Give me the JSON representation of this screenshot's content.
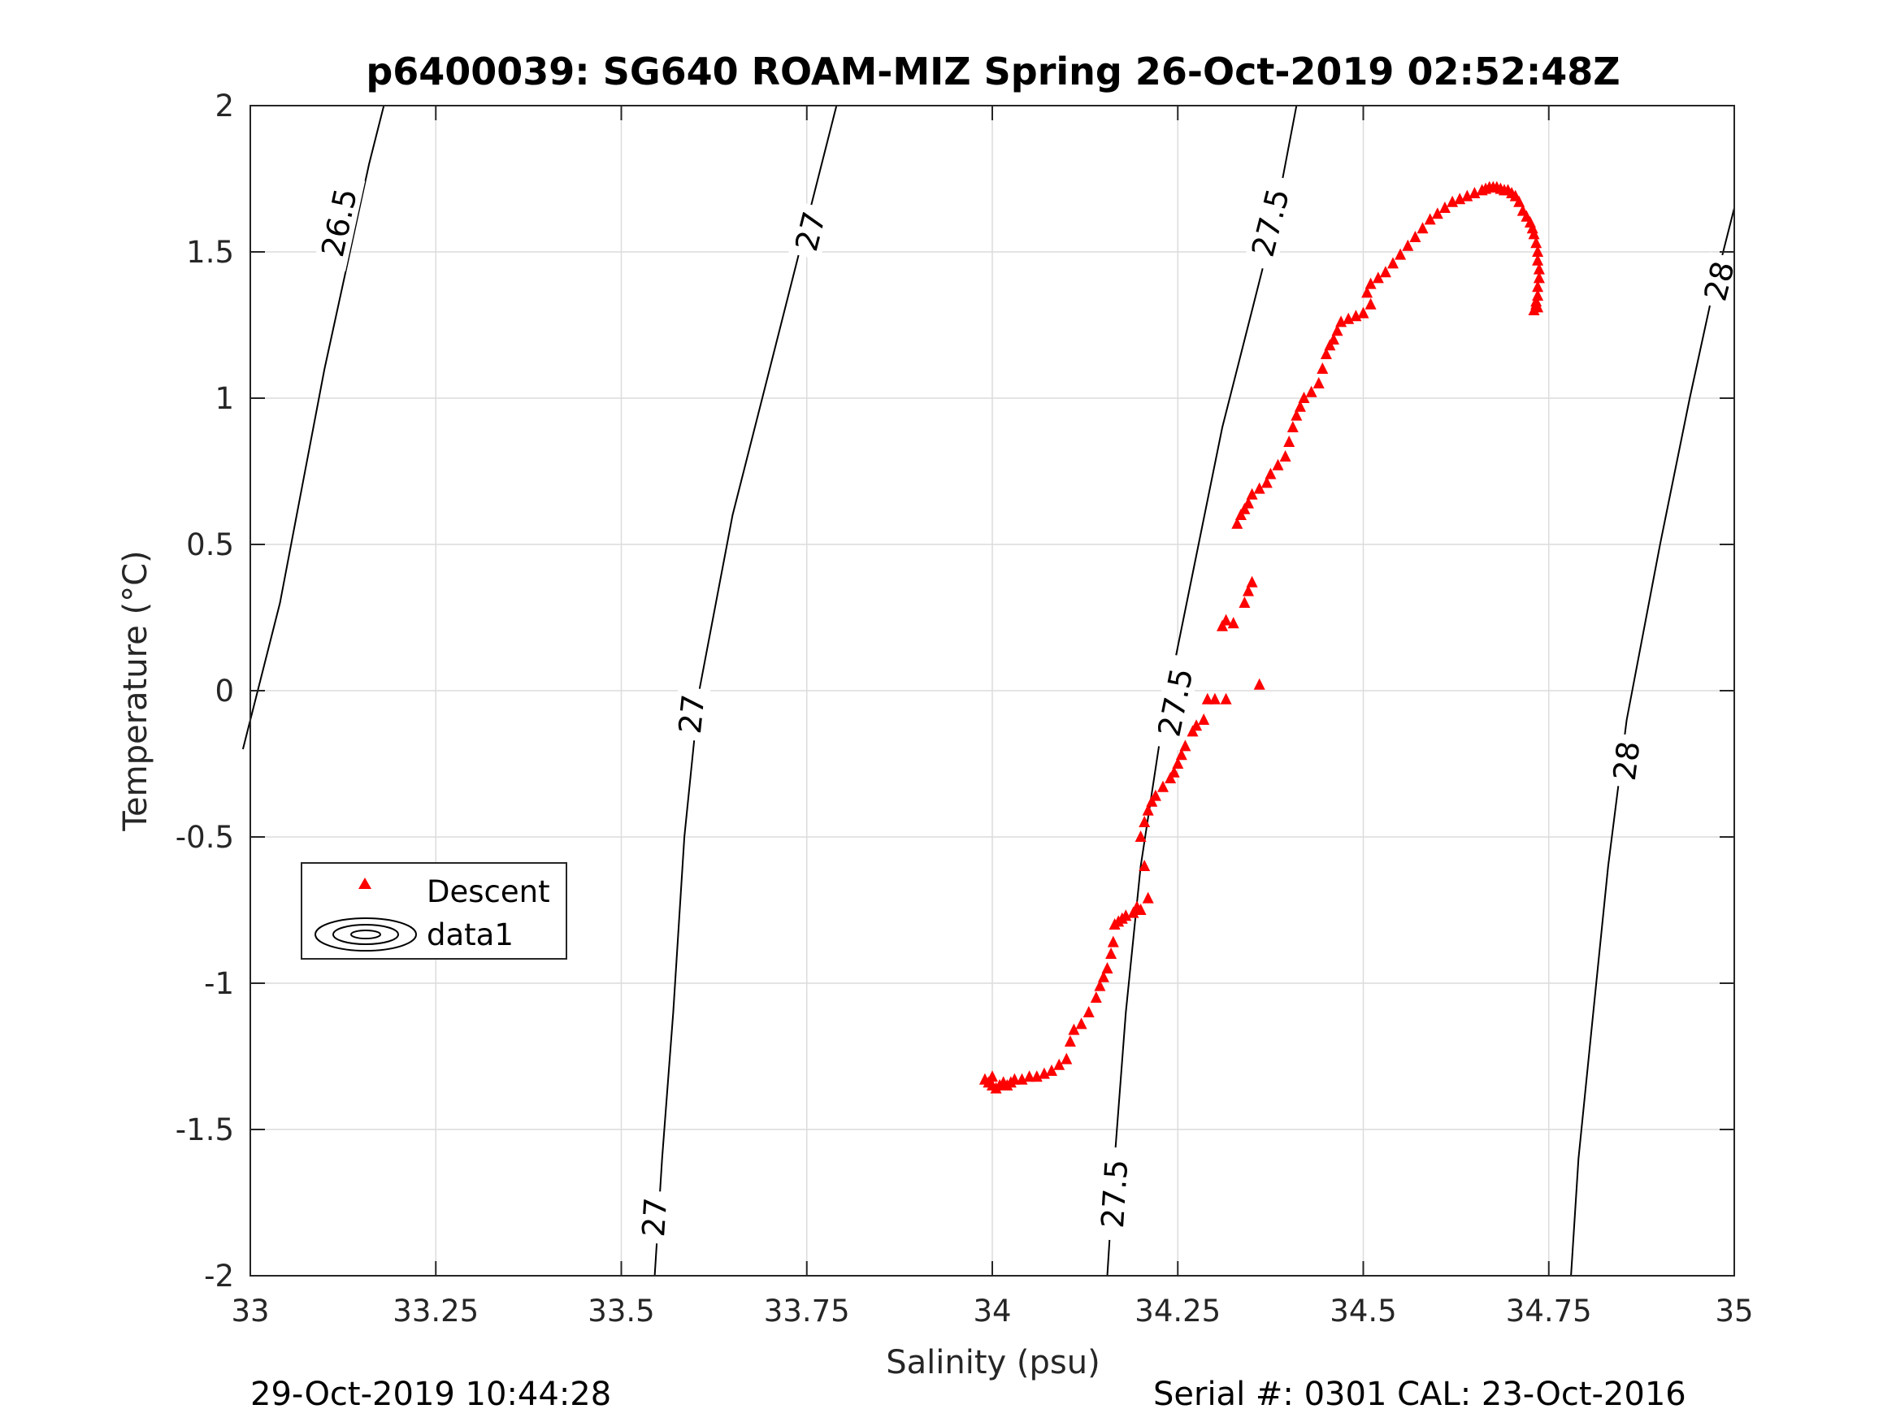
{
  "chart_data": {
    "type": "scatter",
    "title": "p6400039: SG640 ROAM-MIZ Spring 26-Oct-2019 02:52:48Z",
    "xlabel": "Salinity (psu)",
    "ylabel": "Temperature (°C)",
    "xlim": [
      33,
      35
    ],
    "ylim": [
      -2,
      2
    ],
    "x_ticks": [
      33,
      33.25,
      33.5,
      33.75,
      34,
      34.25,
      34.5,
      34.75,
      35
    ],
    "x_tick_labels": [
      "33",
      "33.25",
      "33.5",
      "33.75",
      "34",
      "34.25",
      "34.5",
      "34.75",
      "35"
    ],
    "y_ticks": [
      -2,
      -1.5,
      -1,
      -0.5,
      0,
      0.5,
      1,
      1.5,
      2
    ],
    "y_tick_labels": [
      "-2",
      "-1.5",
      "-1",
      "-0.5",
      "0",
      "0.5",
      "1",
      "1.5",
      "2"
    ],
    "grid": true,
    "legend": {
      "placement": "lower-left",
      "entries": [
        {
          "label": "Descent",
          "marker": "triangle",
          "color": "#ff0000"
        },
        {
          "label": "data1",
          "marker": "contour",
          "color": "#000000"
        }
      ]
    },
    "contours": [
      {
        "level": "26.5",
        "points": [
          [
            32.99,
            -0.2
          ],
          [
            33.04,
            0.3
          ],
          [
            33.07,
            0.7
          ],
          [
            33.1,
            1.1
          ],
          [
            33.13,
            1.45
          ],
          [
            33.16,
            1.8
          ],
          [
            33.18,
            2.0
          ]
        ],
        "labels": [
          {
            "text": "26.5",
            "s": 33.12,
            "t": 1.6
          }
        ]
      },
      {
        "level": "27",
        "points": [
          [
            33.545,
            -2.0
          ],
          [
            33.555,
            -1.6
          ],
          [
            33.57,
            -1.1
          ],
          [
            33.585,
            -0.5
          ],
          [
            33.605,
            0.0
          ],
          [
            33.65,
            0.6
          ],
          [
            33.7,
            1.1
          ],
          [
            33.74,
            1.5
          ],
          [
            33.79,
            2.0
          ]
        ],
        "labels": [
          {
            "text": "27",
            "s": 33.545,
            "t": -1.8
          },
          {
            "text": "27",
            "s": 33.595,
            "t": -0.08
          },
          {
            "text": "27",
            "s": 33.755,
            "t": 1.57
          }
        ]
      },
      {
        "level": "27.5",
        "points": [
          [
            34.155,
            -2.0
          ],
          [
            34.165,
            -1.6
          ],
          [
            34.18,
            -1.1
          ],
          [
            34.2,
            -0.6
          ],
          [
            34.23,
            -0.1
          ],
          [
            34.27,
            0.4
          ],
          [
            34.31,
            0.9
          ],
          [
            34.35,
            1.3
          ],
          [
            34.38,
            1.6
          ],
          [
            34.41,
            2.0
          ]
        ],
        "labels": [
          {
            "text": "27.5",
            "s": 34.165,
            "t": -1.72
          },
          {
            "text": "27.5",
            "s": 34.247,
            "t": -0.04
          },
          {
            "text": "27.5",
            "s": 34.375,
            "t": 1.6
          }
        ]
      },
      {
        "level": "28",
        "points": [
          [
            34.78,
            -2.0
          ],
          [
            34.79,
            -1.6
          ],
          [
            34.81,
            -1.1
          ],
          [
            34.83,
            -0.6
          ],
          [
            34.855,
            -0.1
          ],
          [
            34.9,
            0.5
          ],
          [
            34.94,
            1.0
          ],
          [
            34.97,
            1.35
          ],
          [
            35.0,
            1.65
          ]
        ],
        "labels": [
          {
            "text": "28",
            "s": 34.855,
            "t": -0.24
          },
          {
            "text": "28",
            "s": 34.98,
            "t": 1.4
          }
        ]
      }
    ],
    "series": [
      {
        "name": "Descent",
        "marker": "triangle",
        "color": "#ff0000",
        "points": [
          [
            33.99,
            -1.33
          ],
          [
            33.995,
            -1.34
          ],
          [
            34.0,
            -1.32
          ],
          [
            34.0,
            -1.35
          ],
          [
            34.005,
            -1.36
          ],
          [
            34.01,
            -1.35
          ],
          [
            34.015,
            -1.34
          ],
          [
            34.02,
            -1.35
          ],
          [
            34.025,
            -1.34
          ],
          [
            34.03,
            -1.33
          ],
          [
            34.04,
            -1.33
          ],
          [
            34.05,
            -1.32
          ],
          [
            34.06,
            -1.32
          ],
          [
            34.07,
            -1.31
          ],
          [
            34.08,
            -1.3
          ],
          [
            34.09,
            -1.28
          ],
          [
            34.1,
            -1.26
          ],
          [
            34.105,
            -1.2
          ],
          [
            34.11,
            -1.16
          ],
          [
            34.12,
            -1.14
          ],
          [
            34.13,
            -1.1
          ],
          [
            34.14,
            -1.05
          ],
          [
            34.145,
            -1.01
          ],
          [
            34.15,
            -0.98
          ],
          [
            34.155,
            -0.95
          ],
          [
            34.16,
            -0.9
          ],
          [
            34.163,
            -0.86
          ],
          [
            34.165,
            -0.8
          ],
          [
            34.17,
            -0.79
          ],
          [
            34.175,
            -0.78
          ],
          [
            34.18,
            -0.77
          ],
          [
            34.19,
            -0.76
          ],
          [
            34.195,
            -0.74
          ],
          [
            34.2,
            -0.75
          ],
          [
            34.21,
            -0.71
          ],
          [
            34.205,
            -0.6
          ],
          [
            34.2,
            -0.5
          ],
          [
            34.205,
            -0.45
          ],
          [
            34.21,
            -0.41
          ],
          [
            34.215,
            -0.38
          ],
          [
            34.22,
            -0.36
          ],
          [
            34.23,
            -0.33
          ],
          [
            34.24,
            -0.3
          ],
          [
            34.245,
            -0.28
          ],
          [
            34.25,
            -0.25
          ],
          [
            34.255,
            -0.22
          ],
          [
            34.26,
            -0.19
          ],
          [
            34.27,
            -0.14
          ],
          [
            34.275,
            -0.12
          ],
          [
            34.285,
            -0.1
          ],
          [
            34.29,
            -0.03
          ],
          [
            34.3,
            -0.03
          ],
          [
            34.315,
            -0.03
          ],
          [
            34.36,
            0.02
          ],
          [
            34.31,
            0.22
          ],
          [
            34.315,
            0.24
          ],
          [
            34.325,
            0.23
          ],
          [
            34.34,
            0.3
          ],
          [
            34.345,
            0.34
          ],
          [
            34.35,
            0.37
          ],
          [
            34.33,
            0.57
          ],
          [
            34.335,
            0.6
          ],
          [
            34.34,
            0.62
          ],
          [
            34.345,
            0.64
          ],
          [
            34.35,
            0.67
          ],
          [
            34.36,
            0.69
          ],
          [
            34.37,
            0.71
          ],
          [
            34.375,
            0.74
          ],
          [
            34.385,
            0.77
          ],
          [
            34.395,
            0.8
          ],
          [
            34.4,
            0.85
          ],
          [
            34.405,
            0.9
          ],
          [
            34.41,
            0.94
          ],
          [
            34.415,
            0.97
          ],
          [
            34.42,
            1.0
          ],
          [
            34.43,
            1.02
          ],
          [
            34.44,
            1.05
          ],
          [
            34.445,
            1.1
          ],
          [
            34.45,
            1.15
          ],
          [
            34.455,
            1.18
          ],
          [
            34.46,
            1.2
          ],
          [
            34.465,
            1.23
          ],
          [
            34.47,
            1.26
          ],
          [
            34.48,
            1.27
          ],
          [
            34.49,
            1.28
          ],
          [
            34.5,
            1.29
          ],
          [
            34.51,
            1.32
          ],
          [
            34.505,
            1.36
          ],
          [
            34.51,
            1.39
          ],
          [
            34.52,
            1.41
          ],
          [
            34.53,
            1.43
          ],
          [
            34.54,
            1.46
          ],
          [
            34.55,
            1.49
          ],
          [
            34.56,
            1.52
          ],
          [
            34.57,
            1.55
          ],
          [
            34.58,
            1.58
          ],
          [
            34.59,
            1.61
          ],
          [
            34.6,
            1.63
          ],
          [
            34.61,
            1.65
          ],
          [
            34.62,
            1.67
          ],
          [
            34.63,
            1.68
          ],
          [
            34.64,
            1.69
          ],
          [
            34.65,
            1.7
          ],
          [
            34.66,
            1.71
          ],
          [
            34.665,
            1.715
          ],
          [
            34.67,
            1.72
          ],
          [
            34.675,
            1.72
          ],
          [
            34.68,
            1.72
          ],
          [
            34.685,
            1.715
          ],
          [
            34.69,
            1.71
          ],
          [
            34.695,
            1.71
          ],
          [
            34.7,
            1.7
          ],
          [
            34.705,
            1.69
          ],
          [
            34.71,
            1.67
          ],
          [
            34.715,
            1.64
          ],
          [
            34.72,
            1.62
          ],
          [
            34.725,
            1.6
          ],
          [
            34.728,
            1.58
          ],
          [
            34.73,
            1.56
          ],
          [
            34.733,
            1.53
          ],
          [
            34.735,
            1.5
          ],
          [
            34.735,
            1.47
          ],
          [
            34.737,
            1.44
          ],
          [
            34.737,
            1.41
          ],
          [
            34.735,
            1.38
          ],
          [
            34.735,
            1.35
          ],
          [
            34.733,
            1.32
          ],
          [
            34.73,
            1.3
          ],
          [
            34.735,
            1.31
          ],
          [
            34.733,
            1.33
          ]
        ]
      }
    ]
  },
  "footer": {
    "timestamp": "29-Oct-2019 10:44:28",
    "serial": "Serial #: 0301  CAL: 23-Oct-2016"
  }
}
